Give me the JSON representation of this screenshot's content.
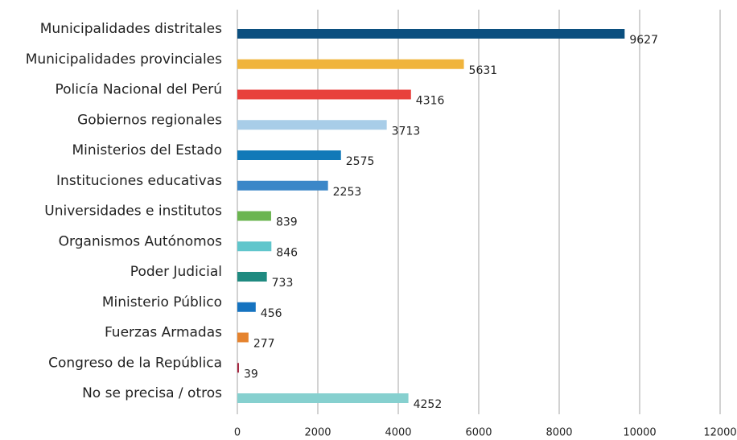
{
  "chart_data": {
    "type": "bar",
    "orientation": "horizontal",
    "categories": [
      "Municipalidades distritales",
      "Municipalidades provinciales",
      "Policía Nacional del Perú",
      "Gobiernos regionales",
      "Ministerios del Estado",
      "Instituciones educativas",
      "Universidades e institutos",
      "Organismos Autónomos",
      "Poder Judicial",
      "Ministerio Público",
      "Fuerzas Armadas",
      "Congreso de la República",
      "No se precisa / otros"
    ],
    "values": [
      9627,
      5631,
      4316,
      3713,
      2575,
      2253,
      839,
      846,
      733,
      456,
      277,
      39,
      4252
    ],
    "colors": [
      "#0b4f7f",
      "#f0b43c",
      "#e8413c",
      "#a8cde8",
      "#1279b8",
      "#3b87c8",
      "#6bb550",
      "#60c6cc",
      "#1f8a80",
      "#1573c0",
      "#e5832e",
      "#a3203a",
      "#86d0cf"
    ],
    "xlim": [
      0,
      12000
    ],
    "xticks": [
      0,
      2000,
      4000,
      6000,
      8000,
      10000,
      12000
    ],
    "grid": true
  }
}
